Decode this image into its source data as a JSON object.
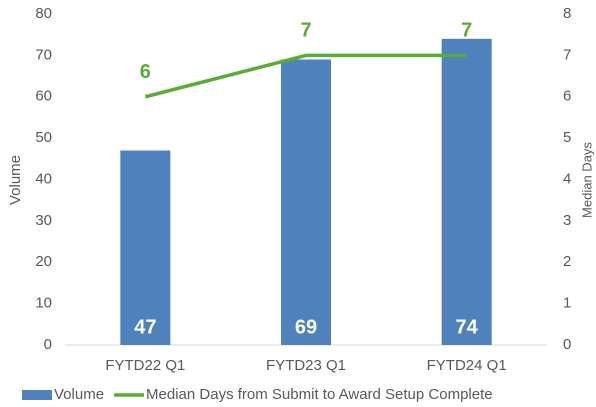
{
  "chart_data": {
    "type": "bar",
    "categories": [
      "FYTD22 Q1",
      "FYTD23 Q1",
      "FYTD24 Q1"
    ],
    "series": [
      {
        "name": "Volume",
        "color": "#4f81bd",
        "type": "bar",
        "values": [
          47,
          69,
          74
        ]
      },
      {
        "name": "Median Days from Submit to Award Setup Complete",
        "color": "#5aac37",
        "type": "line",
        "axis": "y2",
        "values": [
          6,
          7,
          7
        ]
      }
    ],
    "ylabel": "Volume",
    "y2label": "Median Days",
    "ylim": [
      0,
      80
    ],
    "yticks": [
      0,
      10,
      20,
      30,
      40,
      50,
      60,
      70,
      80
    ],
    "y2lim": [
      0,
      8
    ],
    "y2ticks": [
      0,
      1,
      2,
      3,
      4,
      5,
      6,
      7,
      8
    ],
    "legend": "bottom"
  }
}
